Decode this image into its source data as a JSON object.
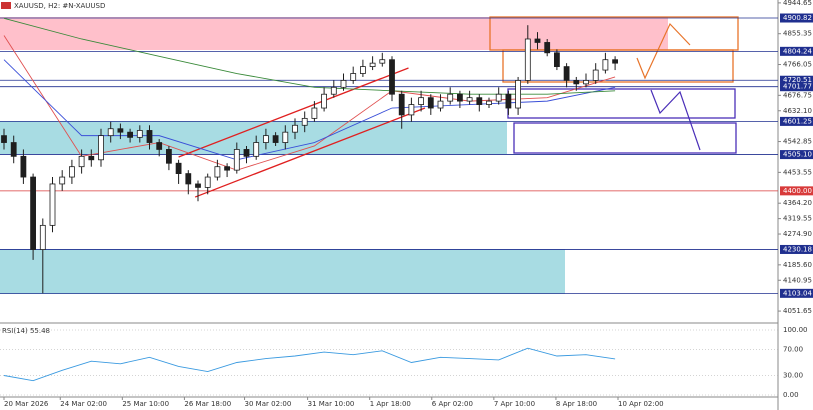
{
  "chart_data": {
    "type": "candlestick",
    "title": "XAUUSD, H2:  #N-XAUUSD",
    "ylim": [
      4020,
      4953
    ],
    "yticks": [
      4944.65,
      4855.35,
      4766.05,
      {
        "value": 4676.75,
        "label": "4676.75"
      },
      {
        "value": 4632.1,
        "label": "4632.10"
      },
      4542.85,
      4453.55,
      {
        "value": 4364.2,
        "label": "4364.20"
      },
      4319.55,
      {
        "value": 4274.9,
        "label": "4274.90"
      },
      {
        "value": 4185.6,
        "label": "4185.60"
      },
      4140.95,
      4051.65
    ],
    "levels": [
      {
        "value": 4900.82,
        "label": "4900.82",
        "color": "#1f2f8f"
      },
      {
        "value": 4804.24,
        "label": "4804.24",
        "color": "#1f2f8f"
      },
      {
        "value": 4720.51,
        "label": "4720.51",
        "color": "#1f2f8f"
      },
      {
        "value": 4701.77,
        "label": "4701.77",
        "color": "#1f2f8f"
      },
      {
        "value": 4601.25,
        "label": "4601.25",
        "color": "#1f2f8f"
      },
      {
        "value": 4505.1,
        "label": "4505.10",
        "color": "#1f2f8f"
      },
      {
        "value": 4400,
        "label": "4400.00",
        "color": "#d83a3a"
      },
      {
        "value": 4230.18,
        "label": "4230.18",
        "color": "#1f2f8f"
      },
      {
        "value": 4103.04,
        "label": "4103.04",
        "color": "#1f2f8f"
      }
    ],
    "xticks": [
      {
        "value": 0,
        "label": "20 Mar 2026"
      },
      {
        "value": 5.8,
        "label": "24 Mar 02:00"
      },
      {
        "value": 12.2,
        "label": "25 Mar 10:00"
      },
      {
        "value": 18.6,
        "label": "26 Mar 18:00"
      },
      {
        "value": 24.8,
        "label": "30 Mar 02:00"
      },
      {
        "value": 31.3,
        "label": "31 Mar 10:00"
      },
      {
        "value": 37.7,
        "label": "1 Apr 18:00"
      },
      {
        "value": 44.1,
        "label": "6 Apr 02:00"
      },
      {
        "value": 50.5,
        "label": "7 Apr 10:00"
      },
      {
        "value": 56.9,
        "label": "8 Apr 18:00"
      },
      {
        "value": 63.3,
        "label": "10 Apr 02:00"
      }
    ],
    "color": "#1e1e1e",
    "open": [
      4560,
      4540,
      4500,
      4440,
      4230,
      4300,
      4420,
      4440,
      4470,
      4500,
      4490,
      4560,
      4580,
      4570,
      4555,
      4575,
      4540,
      4520,
      4480,
      4450,
      4420,
      4410,
      4440,
      4470,
      4460,
      4520,
      4500,
      4540,
      4560,
      4540,
      4570,
      4590,
      4610,
      4640,
      4680,
      4700,
      4720,
      4740,
      4760,
      4770,
      4780,
      4680,
      4620,
      4650,
      4670,
      4640,
      4660,
      4680,
      4660,
      4670,
      4650,
      4660,
      4680,
      4640,
      4720,
      4840,
      4830,
      4800,
      4760,
      4720,
      4710,
      4720,
      4750,
      4780
    ],
    "high": [
      4580,
      4560,
      4520,
      4450,
      4320,
      4440,
      4460,
      4490,
      4520,
      4520,
      4580,
      4600,
      4595,
      4580,
      4590,
      4590,
      4550,
      4530,
      4490,
      4460,
      4430,
      4450,
      4490,
      4480,
      4540,
      4530,
      4560,
      4580,
      4570,
      4590,
      4610,
      4630,
      4660,
      4700,
      4720,
      4740,
      4760,
      4780,
      4790,
      4800,
      4790,
      4690,
      4670,
      4690,
      4680,
      4680,
      4700,
      4690,
      4690,
      4680,
      4670,
      4700,
      4690,
      4730,
      4880,
      4860,
      4840,
      4810,
      4770,
      4730,
      4740,
      4770,
      4800,
      4790
    ],
    "low": [
      4520,
      4480,
      4420,
      4200,
      4103,
      4280,
      4400,
      4420,
      4450,
      4470,
      4470,
      4540,
      4550,
      4540,
      4540,
      4520,
      4500,
      4460,
      4420,
      4390,
      4370,
      4390,
      4430,
      4440,
      4450,
      4480,
      4490,
      4520,
      4530,
      4520,
      4550,
      4570,
      4600,
      4630,
      4670,
      4690,
      4710,
      4730,
      4750,
      4760,
      4660,
      4580,
      4600,
      4630,
      4620,
      4630,
      4650,
      4640,
      4650,
      4630,
      4640,
      4650,
      4620,
      4620,
      4710,
      4810,
      4790,
      4750,
      4700,
      4690,
      4700,
      4710,
      4740,
      4750
    ],
    "close": [
      4540,
      4500,
      4440,
      4230,
      4300,
      4420,
      4440,
      4470,
      4500,
      4490,
      4560,
      4580,
      4570,
      4555,
      4575,
      4540,
      4520,
      4480,
      4450,
      4420,
      4410,
      4440,
      4470,
      4460,
      4520,
      4500,
      4540,
      4560,
      4540,
      4570,
      4590,
      4610,
      4640,
      4680,
      4700,
      4720,
      4740,
      4760,
      4770,
      4780,
      4680,
      4620,
      4650,
      4670,
      4640,
      4660,
      4680,
      4660,
      4670,
      4650,
      4660,
      4680,
      4640,
      4720,
      4840,
      4830,
      4800,
      4760,
      4720,
      4710,
      4720,
      4750,
      4780,
      4770
    ],
    "ma_x": [
      0,
      8,
      16,
      24,
      32,
      40,
      48,
      56,
      63
    ],
    "ma": [
      {
        "color": "#e05050",
        "values": [
          4850,
          4500,
          4540,
          4460,
          4530,
          4690,
          4660,
          4670,
          4730
        ]
      },
      {
        "color": "#3a4fd8",
        "values": [
          4780,
          4560,
          4560,
          4490,
          4540,
          4640,
          4650,
          4660,
          4700
        ]
      },
      {
        "color": "#3a8a3a",
        "values": [
          4900,
          4840,
          4790,
          4740,
          4700,
          4690,
          4680,
          4680,
          4690
        ]
      }
    ],
    "trendlines": [
      {
        "x": [
          18,
          41.7
        ],
        "y": [
          4498,
          4756
        ],
        "color": "#e02020"
      },
      {
        "x": [
          19.7,
          43.4
        ],
        "y": [
          4382,
          4640
        ],
        "color": "#e02020"
      }
    ],
    "rsi": {
      "title": "RSI(14) 55.48",
      "color": "#3a9ae0",
      "ylim": [
        0,
        100
      ],
      "yticks": [
        {
          "value": 100,
          "label": "100.00"
        },
        {
          "value": 70,
          "label": "70.00"
        },
        {
          "value": 30,
          "label": "30.00"
        },
        {
          "value": 0,
          "label": "0.00"
        }
      ],
      "x": [
        0,
        3,
        6,
        9,
        12,
        15,
        18,
        21,
        24,
        27,
        30,
        33,
        36,
        39,
        42,
        45,
        48,
        51,
        54,
        57,
        60,
        63
      ],
      "values": [
        30,
        22,
        38,
        52,
        48,
        58,
        44,
        36,
        50,
        56,
        60,
        66,
        62,
        68,
        50,
        58,
        56,
        54,
        72,
        60,
        62,
        55.48
      ]
    }
  }
}
